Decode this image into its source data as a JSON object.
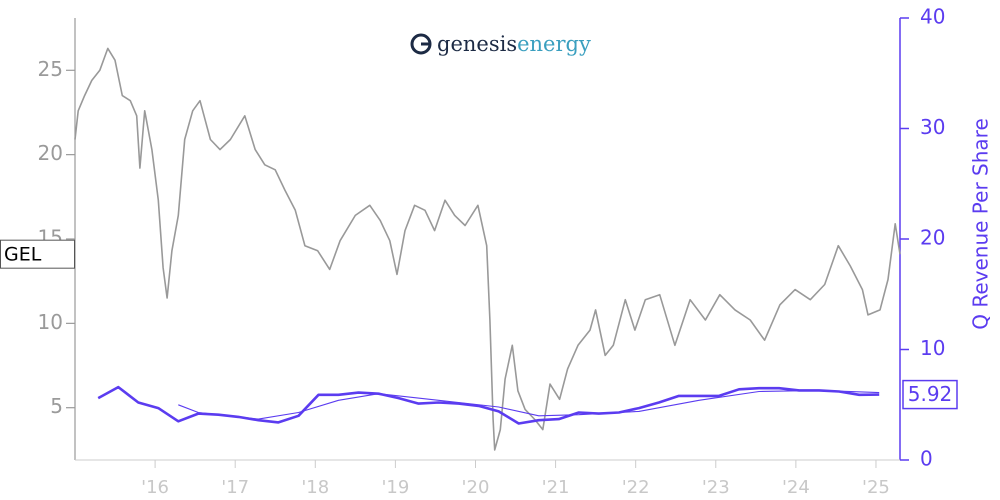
{
  "chart_data": {
    "type": "line",
    "logo": {
      "part1": "genesis",
      "part2": "energy"
    },
    "ticker": "GEL",
    "y2label": "Q Revenue Per Share",
    "xlim": [
      2015.0,
      2025.3
    ],
    "xticks": [
      {
        "value": 2016,
        "label": "'16"
      },
      {
        "value": 2017,
        "label": "'17"
      },
      {
        "value": 2018,
        "label": "'18"
      },
      {
        "value": 2019,
        "label": "'19"
      },
      {
        "value": 2020,
        "label": "'20"
      },
      {
        "value": 2021,
        "label": "'21"
      },
      {
        "value": 2022,
        "label": "'22"
      },
      {
        "value": 2023,
        "label": "'23"
      },
      {
        "value": 2024,
        "label": "'24"
      },
      {
        "value": 2025,
        "label": "'25"
      }
    ],
    "ylim": [
      1.9,
      28.1
    ],
    "yticks": [
      5,
      10,
      15,
      20,
      25
    ],
    "y2lim": [
      0,
      40
    ],
    "y2ticks": [
      0,
      10,
      20,
      30,
      40
    ],
    "series": [
      {
        "color": "#999999",
        "width": 1.6,
        "x": [
          2015.0,
          2015.04,
          2015.12,
          2015.21,
          2015.31,
          2015.41,
          2015.5,
          2015.59,
          2015.69,
          2015.77,
          2015.81,
          2015.87,
          2015.96,
          2016.04,
          2016.1,
          2016.15,
          2016.21,
          2016.29,
          2016.37,
          2016.47,
          2016.56,
          2016.69,
          2016.81,
          2016.94,
          2017.12,
          2017.25,
          2017.37,
          2017.5,
          2017.62,
          2017.75,
          2017.87,
          2018.03,
          2018.18,
          2018.31,
          2018.5,
          2018.68,
          2018.81,
          2018.93,
          2019.02,
          2019.12,
          2019.24,
          2019.37,
          2019.49,
          2019.62,
          2019.74,
          2019.87,
          2020.03,
          2020.14,
          2020.18,
          2020.22,
          2020.24,
          2020.31,
          2020.37,
          2020.46,
          2020.53,
          2020.62,
          2020.74,
          2020.84,
          2020.93,
          2021.05,
          2021.15,
          2021.28,
          2021.43,
          2021.5,
          2021.62,
          2021.72,
          2021.87,
          2021.99,
          2022.12,
          2022.3,
          2022.49,
          2022.68,
          2022.87,
          2023.05,
          2023.24,
          2023.43,
          2023.61,
          2023.8,
          2023.99,
          2024.18,
          2024.36,
          2024.53,
          2024.68,
          2024.83,
          2024.9,
          2025.05,
          2025.15,
          2025.24,
          2025.3
        ],
        "values": [
          20.9,
          22.6,
          23.5,
          24.4,
          25.0,
          26.3,
          25.6,
          23.5,
          23.2,
          22.3,
          19.2,
          22.6,
          20.3,
          17.3,
          13.3,
          11.5,
          14.3,
          16.4,
          20.9,
          22.6,
          23.2,
          20.9,
          20.3,
          20.9,
          22.3,
          20.3,
          19.4,
          19.1,
          17.9,
          16.7,
          14.6,
          14.3,
          13.2,
          14.9,
          16.4,
          17.0,
          16.1,
          14.9,
          12.9,
          15.5,
          17.0,
          16.7,
          15.5,
          17.3,
          16.4,
          15.8,
          17.0,
          14.6,
          10.2,
          4.3,
          2.5,
          3.7,
          6.7,
          8.7,
          6.0,
          4.9,
          4.3,
          3.7,
          6.4,
          5.5,
          7.3,
          8.7,
          9.6,
          10.8,
          8.1,
          8.7,
          11.4,
          9.6,
          11.4,
          11.7,
          8.7,
          11.4,
          10.2,
          11.7,
          10.8,
          10.2,
          9.0,
          11.1,
          12.0,
          11.4,
          12.3,
          14.6,
          13.4,
          12.0,
          10.5,
          10.8,
          12.6,
          15.9,
          14.1
        ]
      },
      {
        "color": "#5b3cf0",
        "width": 2.6,
        "axis": "y2",
        "x": [
          2015.29,
          2015.54,
          2015.79,
          2016.04,
          2016.29,
          2016.54,
          2016.79,
          2017.04,
          2017.29,
          2017.54,
          2017.79,
          2018.04,
          2018.29,
          2018.54,
          2018.79,
          2019.04,
          2019.29,
          2019.54,
          2019.79,
          2020.04,
          2020.29,
          2020.54,
          2020.79,
          2021.04,
          2021.29,
          2021.54,
          2021.79,
          2022.04,
          2022.29,
          2022.54,
          2022.79,
          2023.04,
          2023.29,
          2023.54,
          2023.79,
          2024.04,
          2024.29,
          2024.54,
          2024.79,
          2025.04
        ],
        "values": [
          5.6,
          6.6,
          5.2,
          4.7,
          3.5,
          4.2,
          4.1,
          3.9,
          3.6,
          3.4,
          4.0,
          5.9,
          5.9,
          6.1,
          6.0,
          5.6,
          5.1,
          5.2,
          5.1,
          4.9,
          4.4,
          3.3,
          3.6,
          3.7,
          4.3,
          4.2,
          4.3,
          4.7,
          5.2,
          5.8,
          5.8,
          5.8,
          6.4,
          6.5,
          6.5,
          6.3,
          6.3,
          6.2,
          5.9,
          5.92
        ]
      },
      {
        "color": "#5b3cf0",
        "width": 1.1,
        "axis": "y2",
        "x": [
          2016.29,
          2016.54,
          2017.29,
          2017.79,
          2018.29,
          2018.79,
          2019.54,
          2020.29,
          2020.79,
          2021.29,
          2022.04,
          2022.79,
          2023.54,
          2024.29,
          2025.04
        ],
        "values": [
          5.0,
          4.3,
          3.7,
          4.3,
          5.4,
          6.0,
          5.4,
          4.8,
          4.0,
          4.1,
          4.4,
          5.4,
          6.2,
          6.3,
          6.1
        ]
      }
    ]
  }
}
